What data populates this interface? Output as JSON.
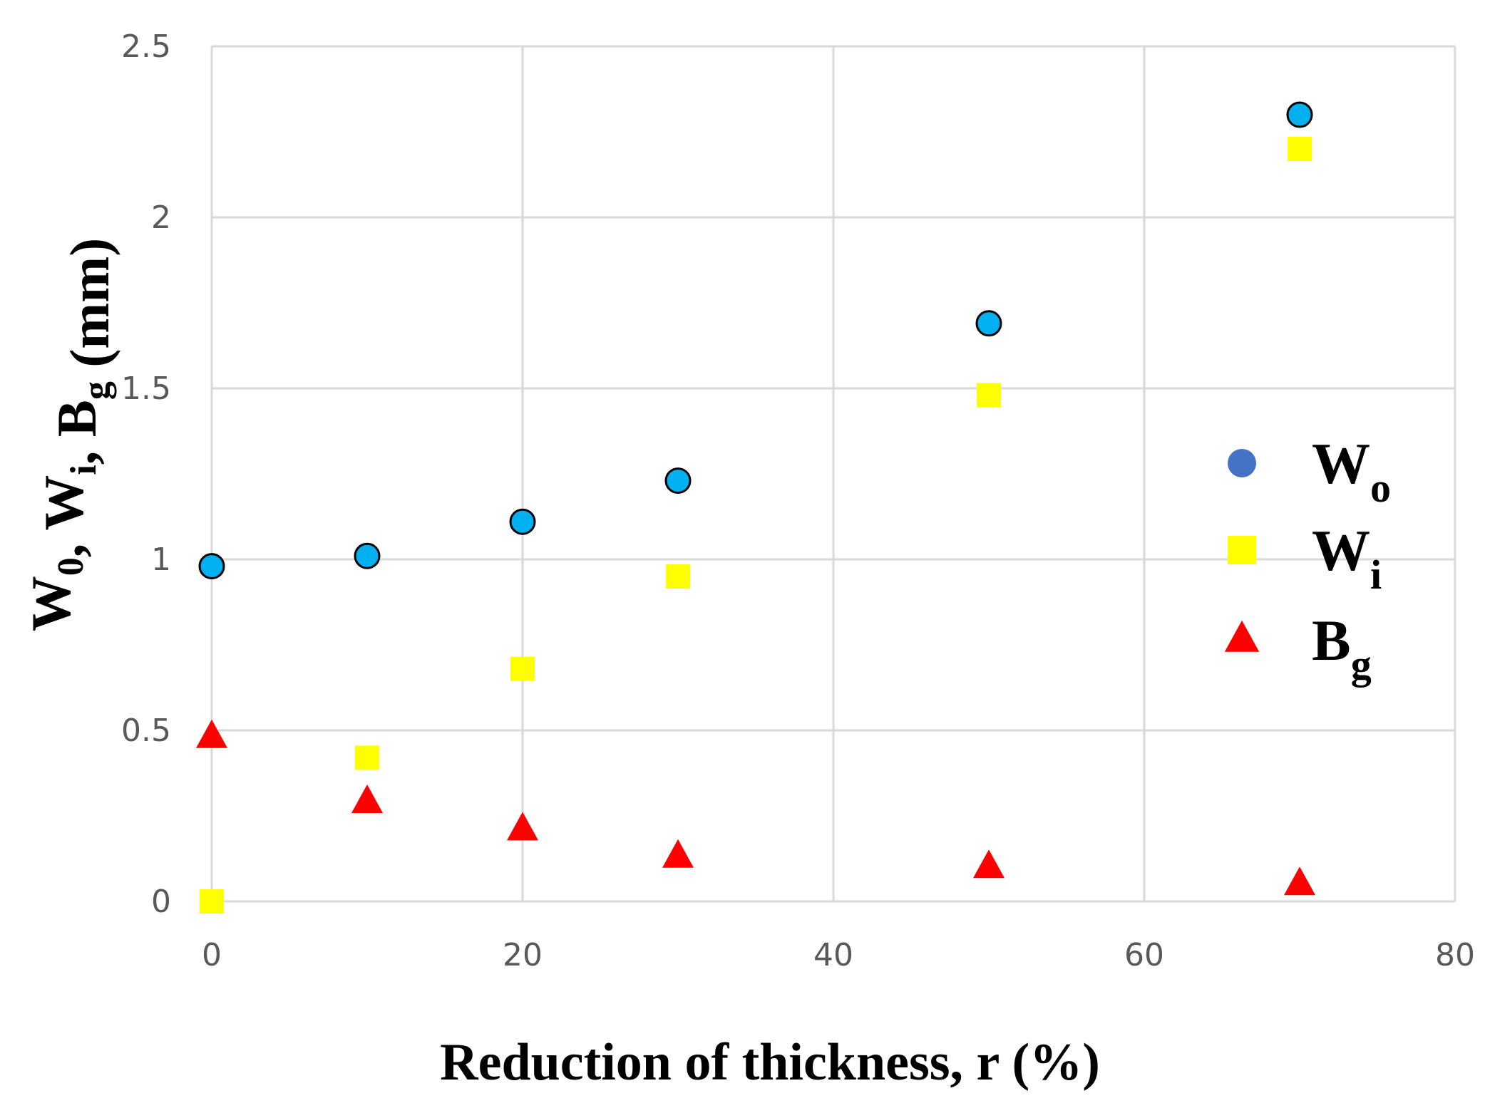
{
  "chart_data": {
    "type": "scatter",
    "title": "",
    "xlabel": "Reduction  of thickness, r (%)",
    "ylabel_parts": [
      {
        "text": "W",
        "sub": "0"
      },
      {
        "text": ", W",
        "sub": "i"
      },
      {
        "text": ", B",
        "sub": "g"
      },
      {
        "text": " (mm)",
        "sub": ""
      }
    ],
    "xlim": [
      0,
      80
    ],
    "ylim": [
      0,
      2.5
    ],
    "xticks": [
      0,
      20,
      40,
      60,
      80
    ],
    "yticks": [
      0,
      0.5,
      1,
      1.5,
      2,
      2.5
    ],
    "xtick_labels": [
      "0",
      "20",
      "40",
      "60",
      "80"
    ],
    "ytick_labels": [
      "0",
      "0.5",
      "1",
      "1.5",
      "2",
      "2.5"
    ],
    "grid": true,
    "legend_position": "right",
    "series": [
      {
        "name": "W",
        "sub": "o",
        "marker": "circle",
        "color": "#00B0F0",
        "legend_color": "#4472C4",
        "edge": "#000000",
        "x": [
          0,
          10,
          20,
          30,
          50,
          70
        ],
        "y": [
          0.98,
          1.01,
          1.11,
          1.23,
          1.69,
          2.3
        ]
      },
      {
        "name": "W",
        "sub": "i",
        "marker": "square",
        "color": "#FFFF00",
        "legend_color": "#FFFF00",
        "x": [
          0,
          10,
          20,
          30,
          50,
          70
        ],
        "y": [
          0.0,
          0.42,
          0.68,
          0.95,
          1.48,
          2.2
        ]
      },
      {
        "name": "B",
        "sub": "g",
        "marker": "triangle",
        "color": "#FF0000",
        "legend_color": "#FF0000",
        "x": [
          0,
          10,
          20,
          30,
          50,
          70
        ],
        "y": [
          0.48,
          0.29,
          0.21,
          0.13,
          0.1,
          0.05
        ]
      }
    ]
  }
}
